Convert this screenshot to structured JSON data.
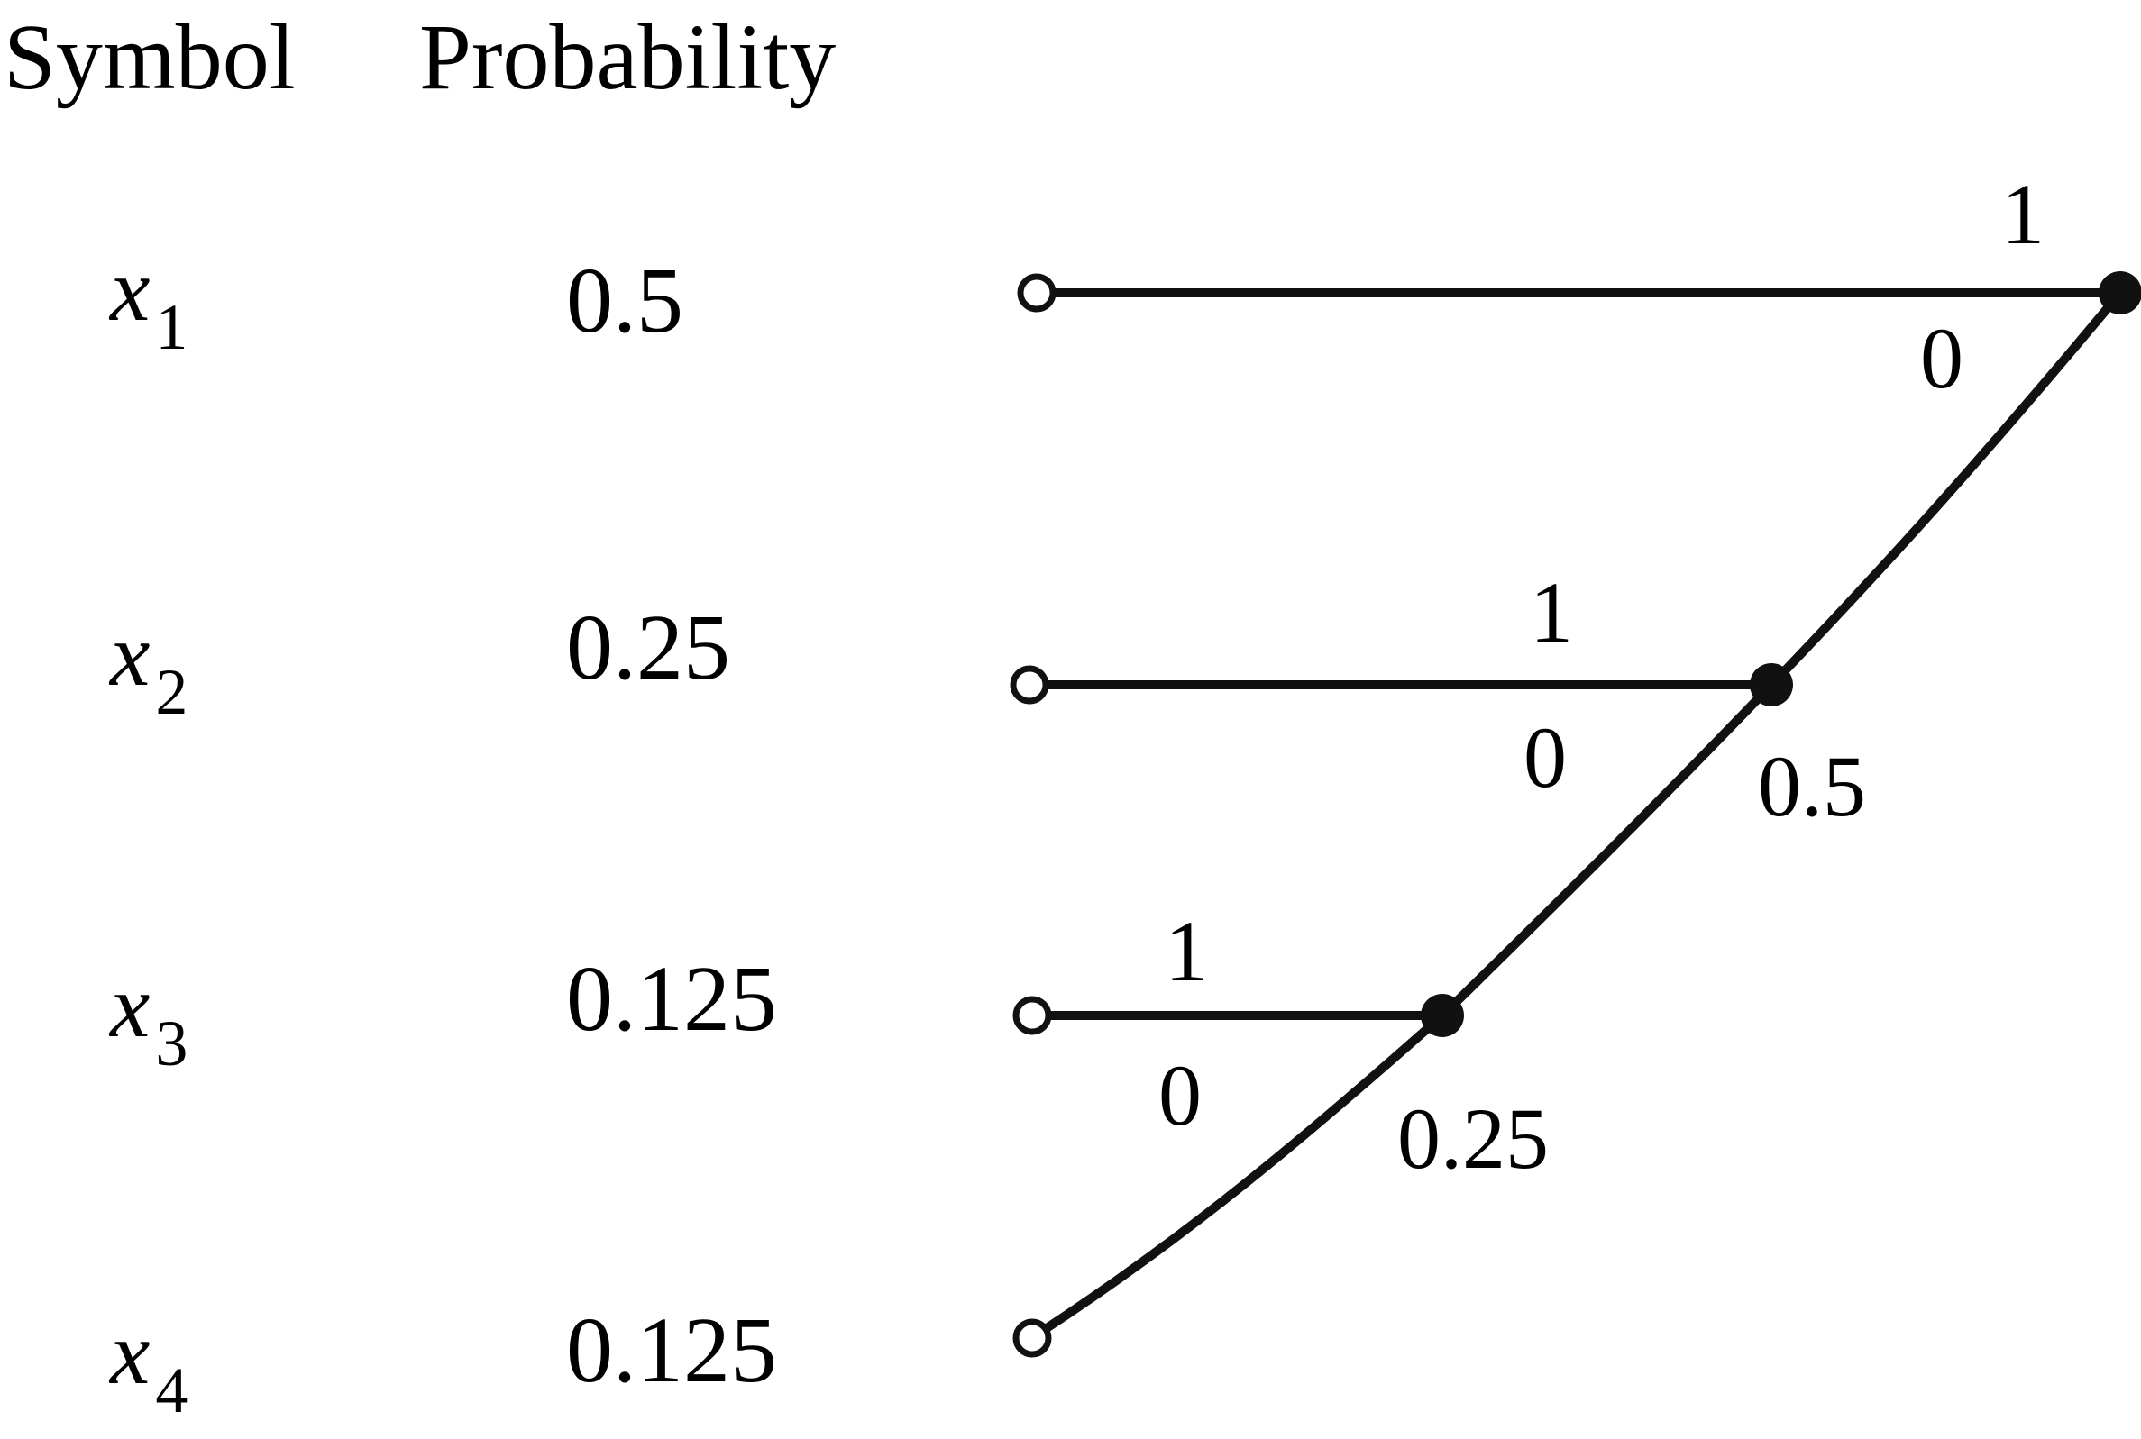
{
  "headers": {
    "symbol": "Symbol",
    "probability": "Probability"
  },
  "rows": [
    {
      "symbol_base": "x",
      "symbol_sub": "1",
      "probability": "0.5"
    },
    {
      "symbol_base": "x",
      "symbol_sub": "2",
      "probability": "0.25"
    },
    {
      "symbol_base": "x",
      "symbol_sub": "3",
      "probability": "0.125"
    },
    {
      "symbol_base": "x",
      "symbol_sub": "4",
      "probability": "0.125"
    }
  ],
  "tree": {
    "node_1": {
      "branch_upper": "1",
      "branch_lower": "0"
    },
    "node_2": {
      "branch_upper": "1",
      "branch_lower": "0",
      "merged_probability": "0.5"
    },
    "node_3": {
      "branch_upper": "1",
      "branch_lower": "0",
      "merged_probability": "0.25"
    }
  },
  "colors": {
    "ink": "#111111",
    "background": "#ffffff"
  }
}
